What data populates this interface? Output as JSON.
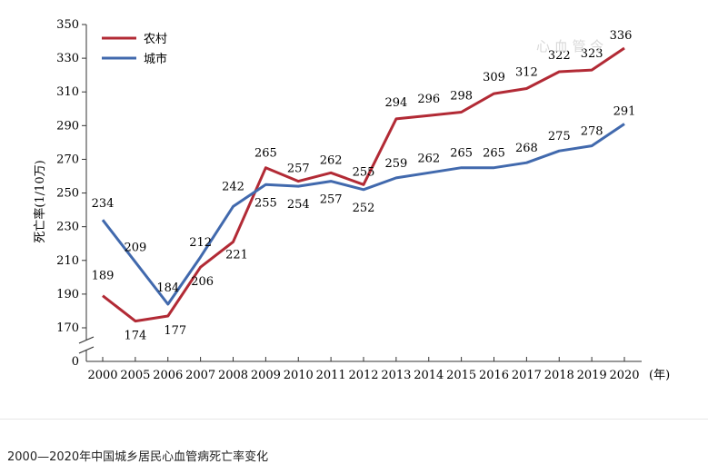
{
  "chart_data": {
    "type": "line",
    "title": "",
    "xlabel": "",
    "x_unit": "(年)",
    "ylabel": "死亡率(1/10万)",
    "ylim": [
      170,
      350
    ],
    "yticks": [
      170,
      190,
      210,
      230,
      250,
      270,
      290,
      310,
      330,
      350
    ],
    "y_zero_label": "0",
    "axis_break": true,
    "grid": false,
    "legend_position": "top-left",
    "categories": [
      "2000",
      "2005",
      "2006",
      "2007",
      "2008",
      "2009",
      "2010",
      "2011",
      "2012",
      "2013",
      "2014",
      "2015",
      "2016",
      "2017",
      "2018",
      "2019",
      "2020"
    ],
    "series": [
      {
        "name": "农村",
        "color": "#b22a35",
        "values": [
          189,
          174,
          177,
          206,
          221,
          265,
          257,
          262,
          255,
          294,
          296,
          298,
          309,
          312,
          322,
          323,
          336
        ],
        "labels": [
          "189",
          "174",
          "177",
          "206",
          "221",
          "265",
          "257",
          "262",
          "255",
          "294",
          "296",
          "298",
          "309",
          "312",
          "322",
          "323",
          "336"
        ]
      },
      {
        "name": "城市",
        "color": "#4169ad",
        "values": [
          234,
          209,
          184,
          212,
          242,
          255,
          254,
          257,
          252,
          259,
          262,
          265,
          265,
          268,
          275,
          278,
          291
        ],
        "labels": [
          "234",
          "209",
          "184",
          "212",
          "242",
          "255",
          "254",
          "257",
          "252",
          "259",
          "262",
          "265",
          "265",
          "268",
          "275",
          "278",
          "291"
        ]
      }
    ]
  },
  "watermark": "心 血 管 今",
  "caption": "2000—2020年中国城乡居民心血管病死亡率变化"
}
